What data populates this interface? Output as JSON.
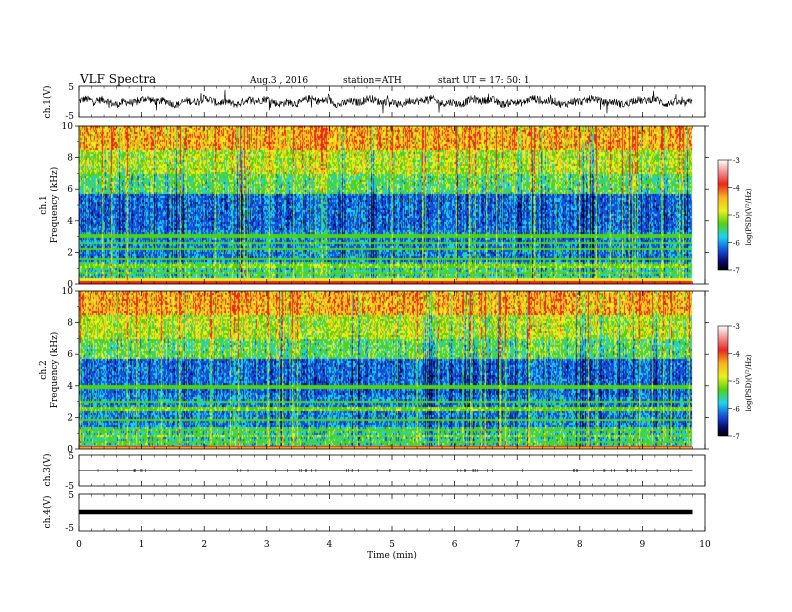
{
  "header": {
    "title": "VLF  Spectra",
    "date": "Aug.3   , 2016",
    "station": "station=ATH",
    "start": "start  UT  =    17: 50: 1"
  },
  "chart_data": {
    "type": "heatmap",
    "colors": {
      "red": "#e8281e",
      "orange": "#f7b41e",
      "yellow": "#eaf01e",
      "green": "#50d214",
      "cyan": "#1ed2f0",
      "blue": "#1450dc",
      "navy": "#0a0a6e",
      "black": "#000000"
    },
    "x": {
      "label": "Time  (min)",
      "range": [
        0,
        10
      ],
      "ticks": [
        "0",
        "1",
        "2",
        "3",
        "4",
        "5",
        "6",
        "7",
        "8",
        "9",
        "10"
      ]
    },
    "panels": [
      {
        "id": "ch1-waveform",
        "ylabel": "ch.1(V)",
        "yticks": [
          "5",
          "-5"
        ],
        "ylim": [
          -5,
          5
        ],
        "kind": "waveform"
      },
      {
        "id": "ch1-spectrogram",
        "ylabel_channel": "ch.1",
        "ylabel": "Frequency  (kHz)",
        "yticks": [
          "0",
          "2",
          "4",
          "6",
          "8",
          "10"
        ],
        "ylim": [
          0,
          10
        ],
        "kind": "spectrogram",
        "colorbar": {
          "label": "log(PSD)(V²/Hz)",
          "ticks": [
            "-3",
            "-4",
            "-5",
            "-6",
            "-7"
          ],
          "range": [
            -7,
            -3
          ]
        }
      },
      {
        "id": "ch2-spectrogram",
        "ylabel_channel": "ch.2",
        "ylabel": "Frequency  (kHz)",
        "yticks": [
          "0",
          "2",
          "4",
          "6",
          "8",
          "10"
        ],
        "ylim": [
          0,
          10
        ],
        "kind": "spectrogram",
        "colorbar": {
          "label": "log(PSD)(V²/Hz)",
          "ticks": [
            "-3",
            "-4",
            "-5",
            "-6",
            "-7"
          ],
          "range": [
            -7,
            -3
          ]
        }
      },
      {
        "id": "ch3-waveform",
        "ylabel": "ch.3(V)",
        "yticks": [
          "5",
          "-5"
        ],
        "ylim": [
          -5,
          5
        ],
        "kind": "waveform"
      },
      {
        "id": "ch4-waveform",
        "ylabel": "ch.4(V)",
        "yticks": [
          "5",
          "-5"
        ],
        "ylim": [
          -5,
          5
        ],
        "kind": "waveform"
      }
    ]
  }
}
